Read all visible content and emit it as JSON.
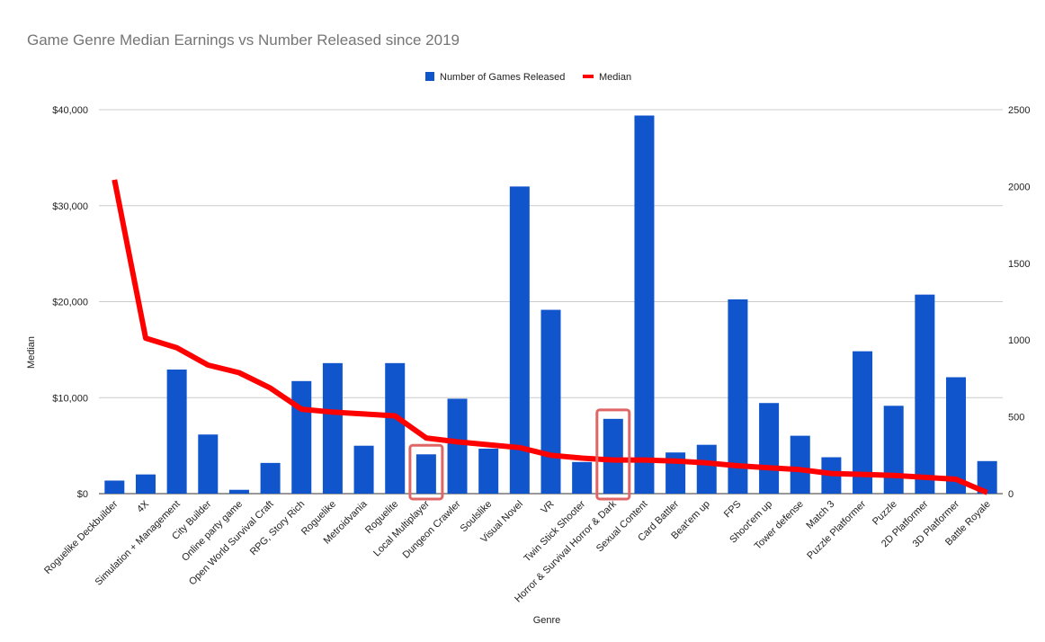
{
  "chart_data": {
    "type": "bar+line",
    "title": "Game Genre Median Earnings vs Number Released since 2019",
    "xlabel": "Genre",
    "ylabel": "Median",
    "y_left": {
      "ticks": [
        "$0",
        "$10,000",
        "$20,000",
        "$30,000",
        "$40,000"
      ],
      "range": [
        0,
        40000
      ]
    },
    "y_right": {
      "ticks": [
        "0",
        "500",
        "1000",
        "1500",
        "2000",
        "2500"
      ],
      "range": [
        0,
        2500
      ]
    },
    "grid": true,
    "legend_position": "top-center",
    "categories": [
      "Roguelike Deckbuilder",
      "4X",
      "Simulation + Management",
      "City Builder",
      "Online party game",
      "Open World Survival Craft",
      "RPG, Story Rich",
      "Roguelike",
      "Metroidvania",
      "Roguelite",
      "Local Multiplayer",
      "Dungeon Crawler",
      "Soulslike",
      "Visual Novel",
      "VR",
      "Twin Stick Shooter",
      "Horror & Survival Horror & Dark",
      "Sexual Content",
      "Card Battler",
      "Beat'em up",
      "FPS",
      "Shoot'em up",
      "Tower defense",
      "Match 3",
      "Puzzle Platformer",
      "Puzzle",
      "2D Platformer",
      "3D Platformer",
      "Battle Royale"
    ],
    "series": [
      {
        "name": "Number of Games Released",
        "type": "bar",
        "axis": "right",
        "color": "#1155cc",
        "values": [
          85,
          125,
          808,
          385,
          25,
          200,
          733,
          850,
          312,
          850,
          256,
          618,
          293,
          2000,
          1197,
          206,
          487,
          2462,
          268,
          318,
          1265,
          590,
          377,
          237,
          927,
          572,
          1296,
          758,
          212
        ]
      },
      {
        "name": "Median",
        "type": "line",
        "axis": "left",
        "color": "#ff0000",
        "values": [
          32700,
          16200,
          15200,
          13400,
          12600,
          11000,
          8800,
          8500,
          8300,
          8100,
          5800,
          5400,
          5100,
          4800,
          4000,
          3700,
          3500,
          3500,
          3400,
          3200,
          2900,
          2700,
          2500,
          2100,
          2000,
          1900,
          1700,
          1500,
          100
        ]
      }
    ],
    "highlighted": [
      "Local Multiplayer",
      "Horror & Survival Horror & Dark"
    ],
    "highlight_color": "#e06666"
  }
}
